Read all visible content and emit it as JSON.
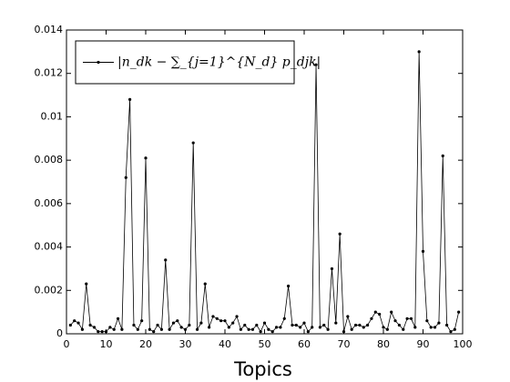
{
  "chart_data": {
    "type": "line",
    "xlabel": "Topics",
    "x": [
      1,
      2,
      3,
      4,
      5,
      6,
      7,
      8,
      9,
      10,
      11,
      12,
      13,
      14,
      15,
      16,
      17,
      18,
      19,
      20,
      21,
      22,
      23,
      24,
      25,
      26,
      27,
      28,
      29,
      30,
      31,
      32,
      33,
      34,
      35,
      36,
      37,
      38,
      39,
      40,
      41,
      42,
      43,
      44,
      45,
      46,
      47,
      48,
      49,
      50,
      51,
      52,
      53,
      54,
      55,
      56,
      57,
      58,
      59,
      60,
      61,
      62,
      63,
      64,
      65,
      66,
      67,
      68,
      69,
      70,
      71,
      72,
      73,
      74,
      75,
      76,
      77,
      78,
      79,
      80,
      81,
      82,
      83,
      84,
      85,
      86,
      87,
      88,
      89,
      90,
      91,
      92,
      93,
      94,
      95,
      96,
      97,
      98,
      99
    ],
    "series": [
      {
        "name": "|n_dk − ∑_{j=1}^{N_d} p_djk|",
        "color": "#000000",
        "values": [
          0.0004,
          0.0006,
          0.0005,
          0.0002,
          0.0023,
          0.0004,
          0.0003,
          0.0001,
          0.0001,
          0.0001,
          0.0003,
          0.0002,
          0.0007,
          0.0002,
          0.0072,
          0.0108,
          0.0004,
          0.0002,
          0.0006,
          0.0081,
          0.0002,
          0.0001,
          0.0004,
          0.0002,
          0.0034,
          0.0002,
          0.0005,
          0.0006,
          0.0003,
          0.0002,
          0.0004,
          0.0088,
          0.0002,
          0.0005,
          0.0023,
          0.0003,
          0.0008,
          0.0007,
          0.0006,
          0.0006,
          0.0003,
          0.0005,
          0.0008,
          0.0002,
          0.0004,
          0.0002,
          0.0002,
          0.0004,
          0.0001,
          0.0005,
          0.0002,
          0.0001,
          0.0003,
          0.0003,
          0.0007,
          0.0022,
          0.0004,
          0.0004,
          0.0003,
          0.0005,
          0.0001,
          0.0003,
          0.0124,
          0.0003,
          0.0004,
          0.0002,
          0.003,
          0.0005,
          0.0046,
          0.0001,
          0.0008,
          0.0002,
          0.0004,
          0.0004,
          0.0003,
          0.0004,
          0.0007,
          0.001,
          0.0009,
          0.0003,
          0.0002,
          0.001,
          0.0006,
          0.0004,
          0.0002,
          0.0007,
          0.0007,
          0.0003,
          0.013,
          0.0038,
          0.0006,
          0.0003,
          0.0003,
          0.0005,
          0.0082,
          0.0004,
          0.0001,
          0.0002,
          0.001
        ]
      }
    ],
    "xlim": [
      0,
      100
    ],
    "xticks": [
      0,
      10,
      20,
      30,
      40,
      50,
      60,
      70,
      80,
      90,
      100
    ],
    "ylim": [
      0,
      0.014
    ],
    "yticks": [
      0,
      0.002,
      0.004,
      0.006,
      0.008,
      0.01,
      0.012,
      0.014
    ],
    "legend": "upper left"
  }
}
